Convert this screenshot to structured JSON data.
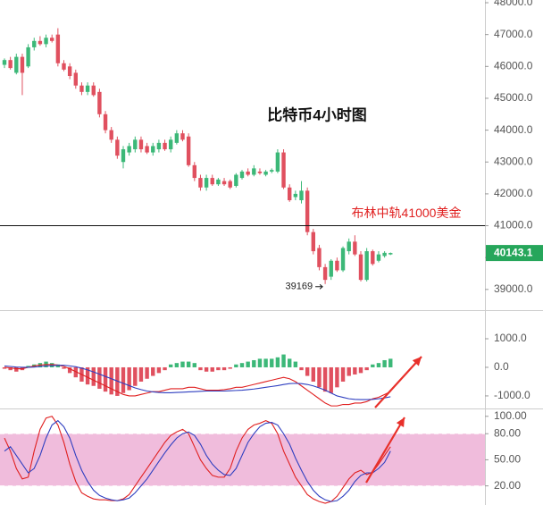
{
  "chart_data": [
    {
      "type": "candlestick",
      "title": "比特币4小时图",
      "up_color": "#3cb878",
      "down_color": "#e0505f",
      "open": [
        46050,
        46200,
        45800,
        46300,
        46000,
        46600,
        46800,
        46700,
        46900,
        47000,
        46100,
        46000,
        45800,
        45400,
        45200,
        45400,
        45200,
        44500,
        44000,
        43700,
        43000,
        43300,
        43400,
        43700,
        43500,
        43300,
        43400,
        43600,
        43400,
        43600,
        43900,
        43800,
        42900,
        42500,
        42200,
        42500,
        42300,
        42400,
        42400,
        42250,
        42500,
        42700,
        42600,
        42700,
        42600,
        42700,
        42700,
        43300,
        42200,
        41900,
        41800,
        42100,
        40800,
        40300,
        39700,
        39400,
        39900,
        39600,
        40200,
        40500,
        40100,
        39300,
        40200,
        39900,
        40050,
        40100
      ],
      "high": [
        46250,
        46300,
        46400,
        46400,
        46700,
        46900,
        46950,
        47000,
        47000,
        47200,
        46200,
        46100,
        45900,
        45500,
        45500,
        45500,
        45300,
        44600,
        44100,
        43800,
        43500,
        43600,
        43800,
        43800,
        43600,
        43600,
        43700,
        43700,
        43800,
        44000,
        44000,
        43900,
        43000,
        42600,
        42600,
        42600,
        42500,
        42500,
        42450,
        42650,
        42750,
        42800,
        42900,
        42800,
        42750,
        42800,
        43400,
        43400,
        42300,
        42100,
        42400,
        42200,
        40900,
        40400,
        39800,
        39950,
        40000,
        40350,
        40600,
        40700,
        40200,
        40300,
        40250,
        40200,
        40200,
        40160
      ],
      "low": [
        45950,
        45900,
        45750,
        45100,
        45950,
        46500,
        46650,
        46600,
        46750,
        46000,
        45850,
        45600,
        45300,
        45100,
        45100,
        45050,
        44400,
        43900,
        43600,
        43100,
        42800,
        43200,
        43300,
        43300,
        43250,
        43200,
        43300,
        43350,
        43300,
        43550,
        43650,
        42850,
        42400,
        42100,
        42100,
        42250,
        42250,
        42250,
        42150,
        42200,
        42450,
        42550,
        42550,
        42600,
        42550,
        42650,
        42650,
        42150,
        41750,
        41800,
        41700,
        40700,
        40100,
        39600,
        39169,
        39300,
        39550,
        39550,
        40100,
        40050,
        39250,
        39250,
        39750,
        39850,
        40000,
        40080
      ],
      "close": [
        46200,
        45950,
        46300,
        45800,
        46600,
        46800,
        46700,
        46900,
        46800,
        46100,
        45900,
        45700,
        45400,
        45200,
        45400,
        45100,
        44500,
        44000,
        43700,
        43200,
        43400,
        43500,
        43700,
        43400,
        43300,
        43500,
        43600,
        43400,
        43700,
        43900,
        43700,
        42900,
        42500,
        42200,
        42500,
        42300,
        42450,
        42300,
        42200,
        42600,
        42700,
        42600,
        42800,
        42650,
        42700,
        42750,
        43300,
        42200,
        41800,
        42000,
        42100,
        40800,
        40200,
        39700,
        39300,
        39900,
        39600,
        40300,
        40500,
        40100,
        39300,
        40200,
        39800,
        40100,
        40150,
        40143.1
      ],
      "ylim": [
        38350,
        48085
      ],
      "yticks": [
        {
          "value": 48000,
          "label": "48000.0"
        },
        {
          "value": 47000,
          "label": "47000.0"
        },
        {
          "value": 46000,
          "label": "46000.0"
        },
        {
          "value": 45000,
          "label": "45000.0"
        },
        {
          "value": 44000,
          "label": "44000.0"
        },
        {
          "value": 43000,
          "label": "43000.0"
        },
        {
          "value": 42000,
          "label": "42000.0"
        },
        {
          "value": 41000,
          "label": "41000.0"
        },
        {
          "value": 40000,
          "label": "40000.0"
        },
        {
          "value": 39000,
          "label": "39000.0"
        }
      ],
      "hline": {
        "value": 41000,
        "label": "布林中轨41000美金",
        "color": "#e02020"
      },
      "low_label": 39169,
      "low_index": 54,
      "last_price": 40143.1,
      "last_color": "#26a65b"
    },
    {
      "type": "macd",
      "histogram": [
        -50,
        -100,
        -150,
        -100,
        50,
        100,
        150,
        200,
        150,
        100,
        -50,
        -200,
        -350,
        -500,
        -600,
        -650,
        -750,
        -850,
        -950,
        -1000,
        -900,
        -800,
        -650,
        -500,
        -400,
        -300,
        -200,
        -100,
        100,
        150,
        200,
        200,
        150,
        -100,
        -150,
        -150,
        -100,
        -100,
        -50,
        100,
        150,
        200,
        250,
        300,
        300,
        300,
        350,
        450,
        300,
        200,
        -100,
        -300,
        -500,
        -700,
        -850,
        -900,
        -700,
        -500,
        -300,
        -250,
        -200,
        -100,
        100,
        150,
        250,
        300
      ],
      "up_color": "#3cb878",
      "down_color": "#e0505f",
      "series": [
        {
          "color": "#e02020",
          "values": [
            0,
            -20,
            -50,
            -50,
            0,
            50,
            80,
            100,
            100,
            80,
            30,
            -50,
            -150,
            -250,
            -350,
            -450,
            -550,
            -650,
            -750,
            -850,
            -950,
            -1000,
            -1000,
            -950,
            -900,
            -850,
            -850,
            -800,
            -750,
            -750,
            -750,
            -700,
            -700,
            -750,
            -800,
            -800,
            -800,
            -780,
            -750,
            -700,
            -700,
            -650,
            -600,
            -550,
            -500,
            -450,
            -400,
            -350,
            -400,
            -500,
            -650,
            -800,
            -950,
            -1100,
            -1250,
            -1350,
            -1350,
            -1300,
            -1300,
            -1250,
            -1250,
            -1200,
            -1100,
            -1050,
            -950,
            -850
          ]
        },
        {
          "color": "#2f3fc0",
          "values": [
            50,
            30,
            10,
            0,
            0,
            10,
            30,
            50,
            60,
            70,
            70,
            50,
            20,
            -30,
            -90,
            -160,
            -240,
            -320,
            -400,
            -480,
            -560,
            -640,
            -720,
            -780,
            -830,
            -860,
            -880,
            -890,
            -890,
            -880,
            -870,
            -860,
            -850,
            -840,
            -830,
            -830,
            -830,
            -830,
            -820,
            -810,
            -800,
            -780,
            -760,
            -730,
            -700,
            -670,
            -640,
            -600,
            -570,
            -560,
            -570,
            -600,
            -650,
            -720,
            -800,
            -900,
            -1000,
            -1050,
            -1100,
            -1120,
            -1130,
            -1130,
            -1120,
            -1100,
            -1070,
            -1030
          ]
        }
      ],
      "ylim": [
        -1440,
        1970
      ],
      "yticks": [
        {
          "value": 1000,
          "label": "1000.0"
        },
        {
          "value": 0,
          "label": "0.0"
        },
        {
          "value": -1000,
          "label": "-1000.0"
        }
      ]
    },
    {
      "type": "stochastic",
      "band": [
        20,
        80
      ],
      "band_color": "#f0bcdc",
      "series": [
        {
          "color": "#e02020",
          "values": [
            75,
            60,
            40,
            28,
            30,
            60,
            85,
            98,
            100,
            90,
            70,
            45,
            25,
            12,
            8,
            5,
            4,
            4,
            3,
            3,
            5,
            10,
            20,
            30,
            40,
            50,
            60,
            70,
            78,
            82,
            85,
            80,
            65,
            50,
            40,
            32,
            30,
            30,
            40,
            60,
            75,
            85,
            90,
            92,
            95,
            92,
            80,
            60,
            45,
            30,
            20,
            10,
            5,
            2,
            0,
            2,
            8,
            18,
            28,
            35,
            38,
            33,
            36,
            45,
            55,
            65
          ]
        },
        {
          "color": "#2f3fc0",
          "values": [
            60,
            65,
            55,
            45,
            35,
            40,
            55,
            75,
            90,
            95,
            88,
            75,
            55,
            38,
            25,
            15,
            9,
            6,
            4,
            3,
            4,
            6,
            12,
            20,
            28,
            38,
            48,
            58,
            67,
            75,
            80,
            82,
            78,
            68,
            55,
            45,
            38,
            33,
            32,
            40,
            55,
            70,
            80,
            88,
            92,
            93,
            90,
            80,
            68,
            52,
            38,
            25,
            15,
            8,
            4,
            2,
            3,
            8,
            15,
            25,
            32,
            35,
            35,
            40,
            47,
            60
          ]
        }
      ],
      "ylim": [
        -2,
        108
      ],
      "yticks": [
        {
          "value": 100,
          "label": "100.00"
        },
        {
          "value": 80,
          "label": "80.00"
        },
        {
          "value": 50,
          "label": "50.00"
        },
        {
          "value": 20,
          "label": "20.00"
        }
      ]
    }
  ]
}
